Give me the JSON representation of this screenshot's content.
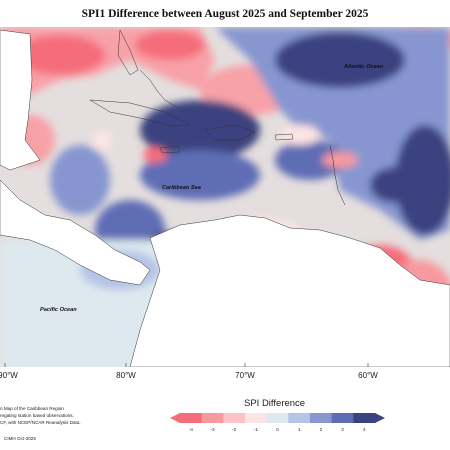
{
  "title": "SPI1 Difference between August 2025 and September 2025",
  "ocean_labels": {
    "atlantic": "Atlantic Ocean",
    "caribbean": "Caribbean Sea",
    "pacific": "Pacific Ocean"
  },
  "longitude_labels": [
    "90°W",
    "80°W",
    "70°W",
    "60°W"
  ],
  "notes": {
    "line1": "n Map of the Caribbean Region",
    "line2": "regating station based observations,",
    "line3": "CF, with NCEP/NCAR Reanalysis Data.",
    "credit": "CIMH Oct-2025"
  },
  "colorbar": {
    "title": "SPI Difference",
    "ticks": [
      "-4",
      "-3",
      "-2",
      "-1",
      "0",
      "1",
      "2",
      "3",
      "4"
    ],
    "colors": [
      "#f56d7a",
      "#f8999f",
      "#fbc3c6",
      "#fde4e4",
      "#dde9ee",
      "#b6c3e7",
      "#8796d0",
      "#5e6db5",
      "#3b437f"
    ]
  },
  "legend_colors": {
    "strong_wet": "#3b437f",
    "moderate_wet": "#5e6db5",
    "slight_wet": "#8796d0",
    "near_normal": "#dde9ee",
    "slight_dry": "#fbc3c6",
    "moderate_dry": "#f8999f",
    "strong_dry": "#f56d7a",
    "land": "#ffffff"
  }
}
